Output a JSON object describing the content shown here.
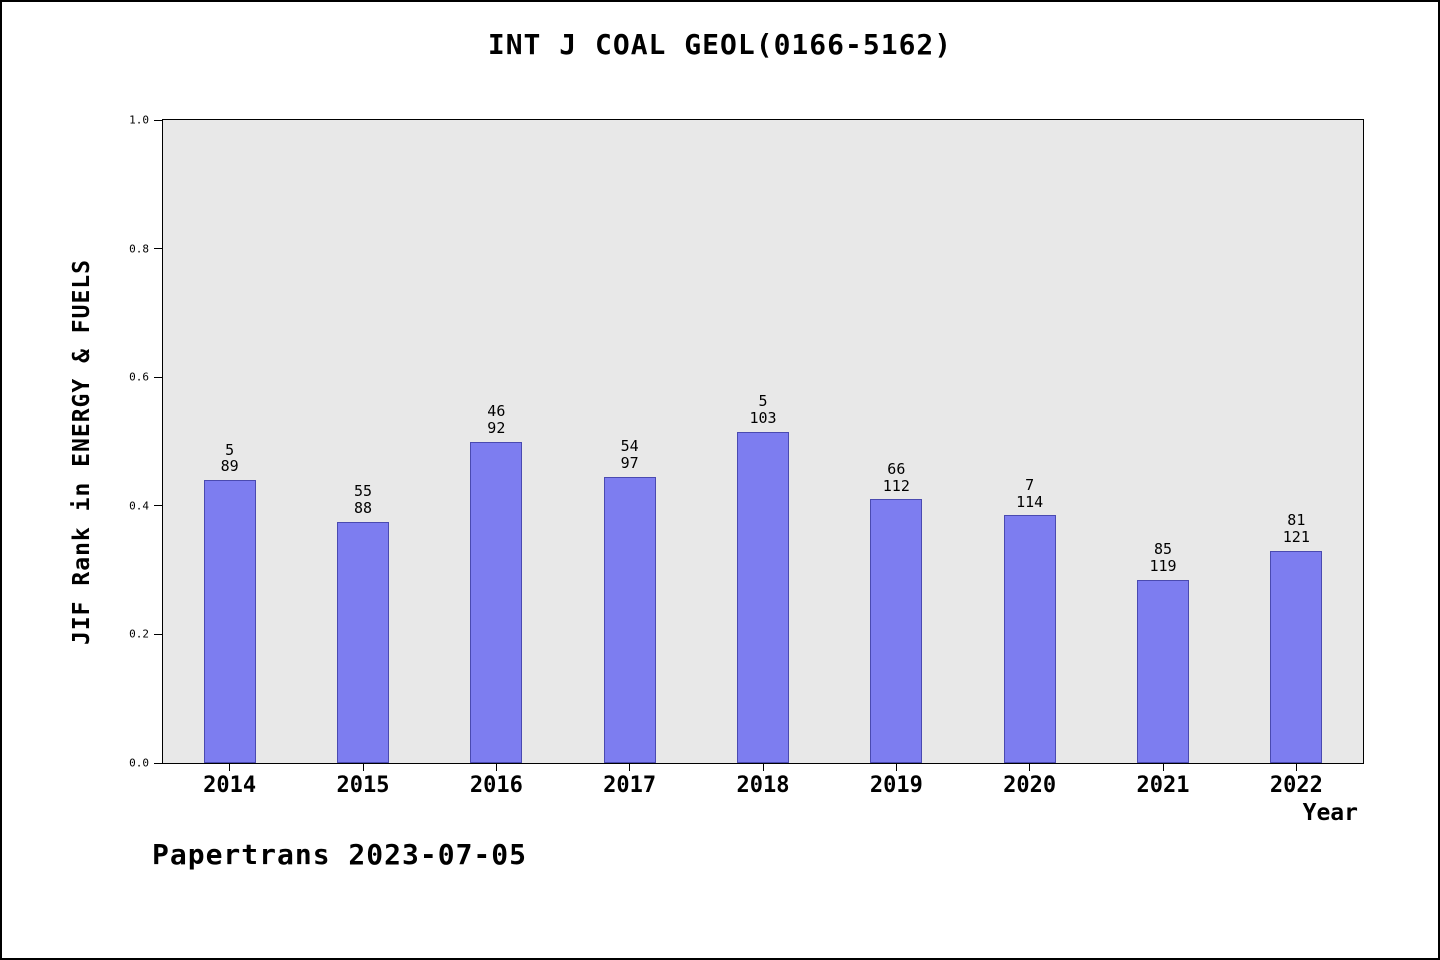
{
  "title": "INT J COAL GEOL(0166-5162)",
  "footer": "Papertrans 2023-07-05",
  "chart_data": {
    "type": "bar",
    "title": "INT J COAL GEOL(0166-5162)",
    "xlabel": "Year",
    "ylabel": "JIF Rank in ENERGY & FUELS",
    "ylim": [
      0.0,
      1.0
    ],
    "yticks": [
      0.0,
      0.2,
      0.4,
      0.6,
      0.8,
      1.0
    ],
    "grid": false,
    "legend": "none",
    "plot_background": "#e8e8e8",
    "bar_color": "#7d7df0",
    "bar_edge_color": "#4a4ab0",
    "categories": [
      "2014",
      "2015",
      "2016",
      "2017",
      "2018",
      "2019",
      "2020",
      "2021",
      "2022"
    ],
    "values": [
      0.44,
      0.375,
      0.5,
      0.445,
      0.515,
      0.41,
      0.385,
      0.285,
      0.33
    ],
    "bar_labels_top": [
      "5",
      "55",
      "46",
      "54",
      "5",
      "66",
      "7",
      "85",
      "81"
    ],
    "bar_labels_bottom": [
      "89",
      "88",
      "92",
      "97",
      "103",
      "112",
      "114",
      "119",
      "121"
    ]
  }
}
